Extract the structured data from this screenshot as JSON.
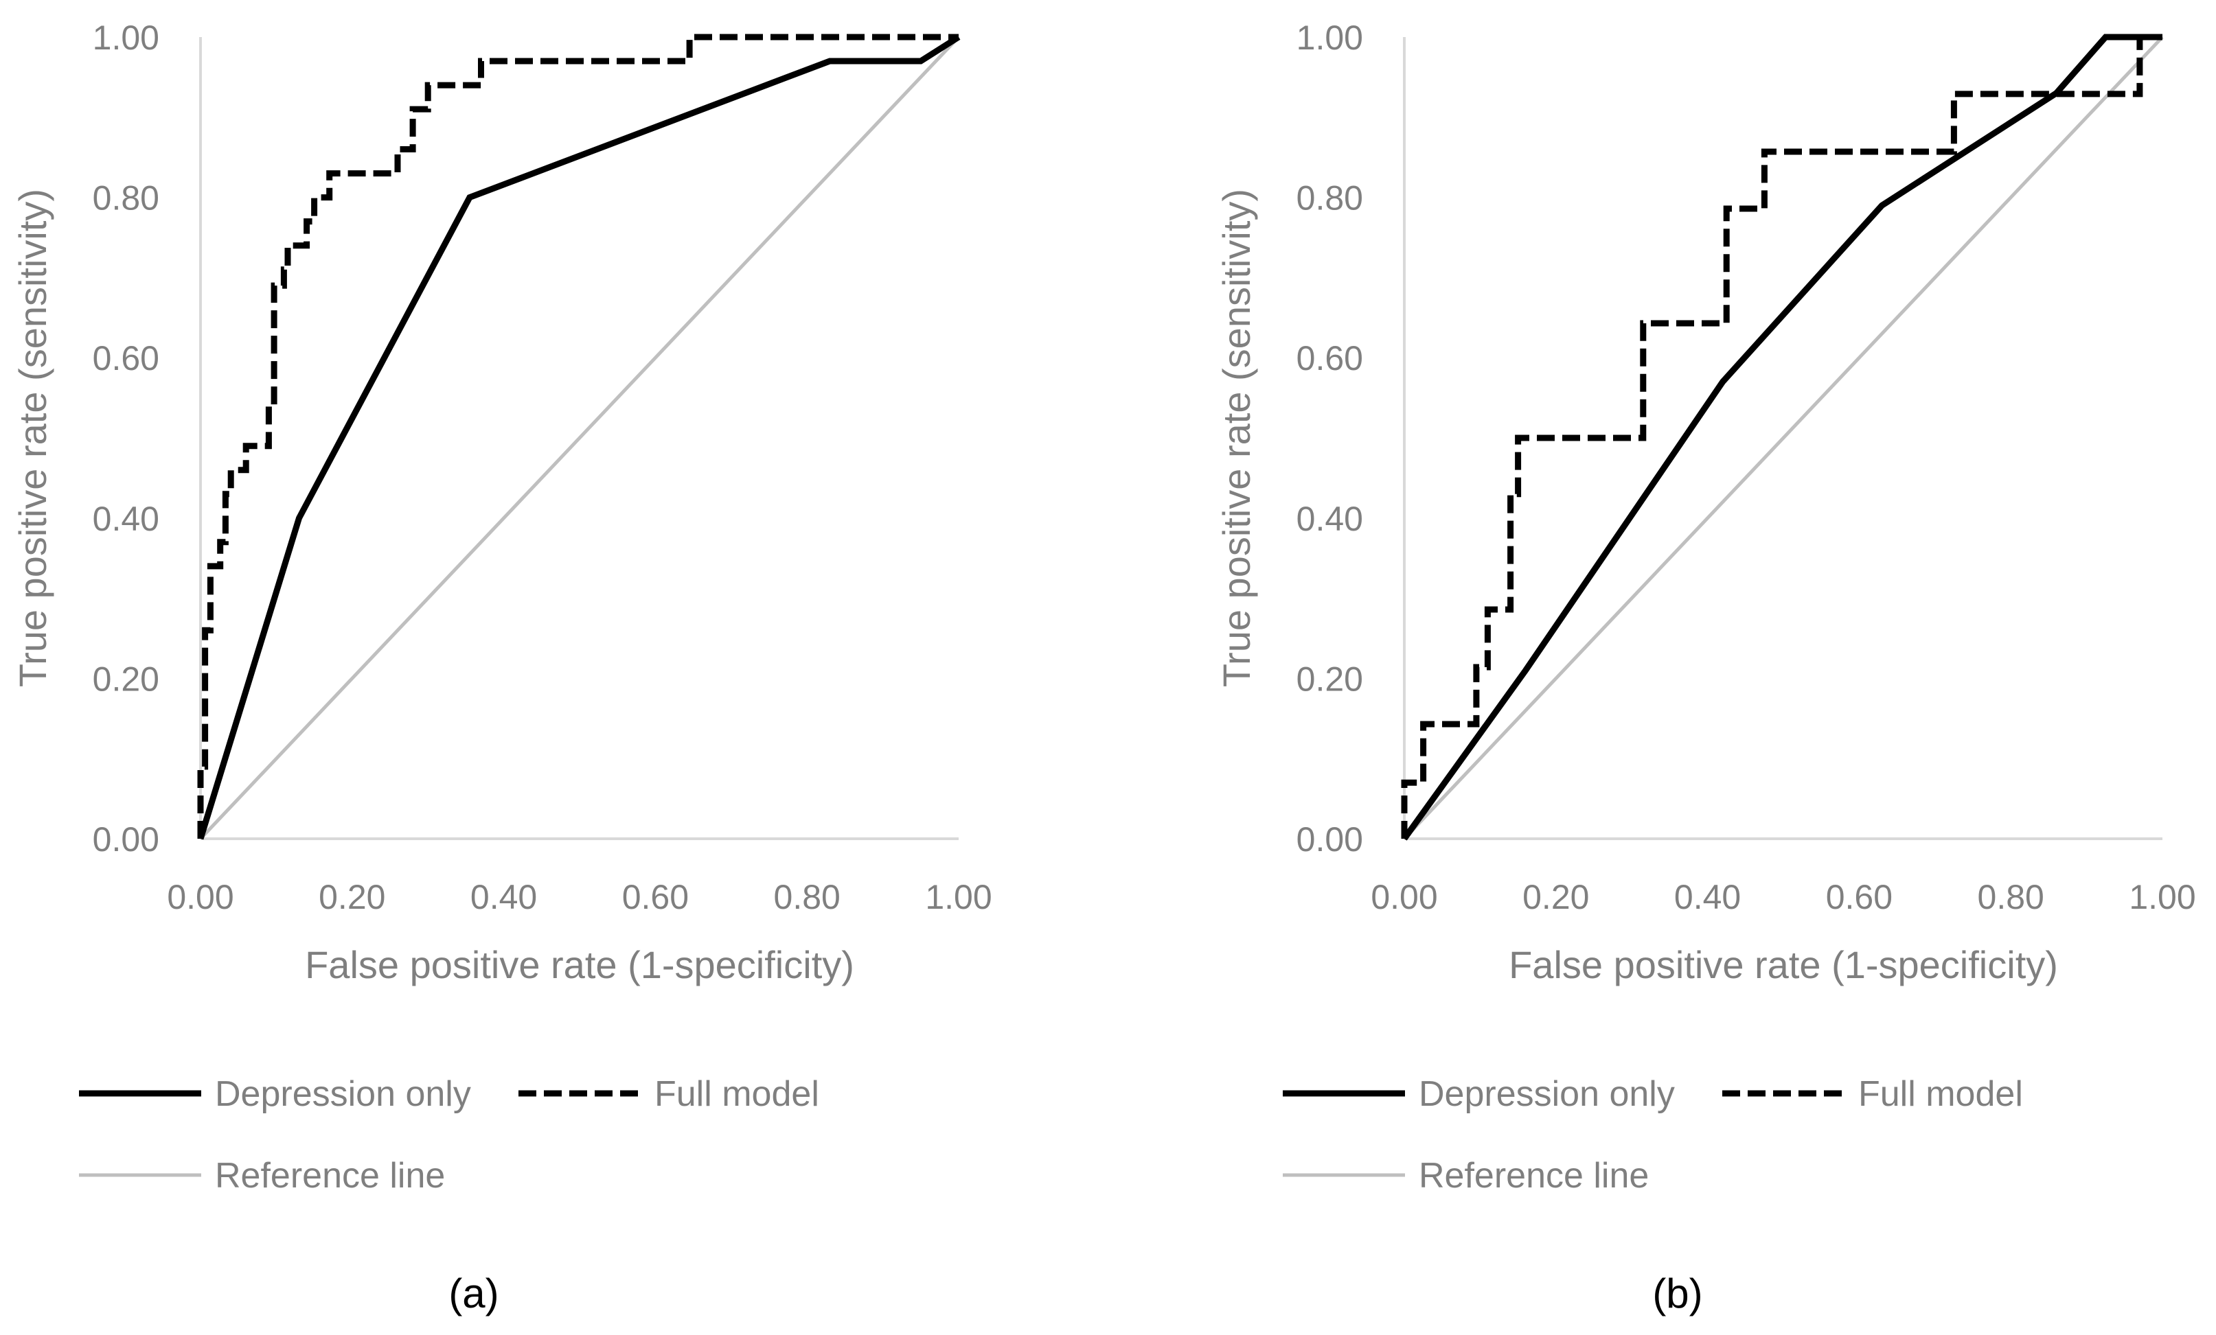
{
  "chart_data": [
    {
      "type": "line",
      "panel_label": "(a)",
      "xlabel": "False positive rate (1-specificity)",
      "ylabel": "True positive rate (sensitivity)",
      "xlim": [
        0,
        1
      ],
      "ylim": [
        0,
        1
      ],
      "x_ticks": [
        "0.00",
        "0.20",
        "0.40",
        "0.60",
        "0.80",
        "1.00"
      ],
      "y_ticks": [
        "0.00",
        "0.20",
        "0.40",
        "0.60",
        "0.80",
        "1.00"
      ],
      "grid": false,
      "legend_position": "bottom",
      "series": [
        {
          "name": "Depression only",
          "style": "solid-thick",
          "color": "#000000",
          "points": [
            [
              0,
              0
            ],
            [
              0.13,
              0.4
            ],
            [
              0.355,
              0.8
            ],
            [
              0.83,
              0.97
            ],
            [
              0.95,
              0.97
            ],
            [
              1.0,
              1.0
            ]
          ]
        },
        {
          "name": "Full model",
          "style": "dashed-thick",
          "color": "#000000",
          "points": [
            [
              0,
              0
            ],
            [
              0,
              0.09
            ],
            [
              0.006,
              0.09
            ],
            [
              0.006,
              0.26
            ],
            [
              0.013,
              0.26
            ],
            [
              0.013,
              0.34
            ],
            [
              0.026,
              0.34
            ],
            [
              0.026,
              0.37
            ],
            [
              0.033,
              0.37
            ],
            [
              0.033,
              0.43
            ],
            [
              0.04,
              0.43
            ],
            [
              0.04,
              0.46
            ],
            [
              0.06,
              0.46
            ],
            [
              0.06,
              0.49
            ],
            [
              0.09,
              0.49
            ],
            [
              0.09,
              0.54
            ],
            [
              0.097,
              0.54
            ],
            [
              0.097,
              0.69
            ],
            [
              0.11,
              0.69
            ],
            [
              0.11,
              0.71
            ],
            [
              0.115,
              0.71
            ],
            [
              0.115,
              0.74
            ],
            [
              0.14,
              0.74
            ],
            [
              0.14,
              0.77
            ],
            [
              0.15,
              0.77
            ],
            [
              0.15,
              0.8
            ],
            [
              0.17,
              0.8
            ],
            [
              0.17,
              0.83
            ],
            [
              0.26,
              0.83
            ],
            [
              0.26,
              0.86
            ],
            [
              0.28,
              0.86
            ],
            [
              0.28,
              0.91
            ],
            [
              0.3,
              0.91
            ],
            [
              0.3,
              0.94
            ],
            [
              0.37,
              0.94
            ],
            [
              0.37,
              0.97
            ],
            [
              0.645,
              0.97
            ],
            [
              0.645,
              1.0
            ],
            [
              1.0,
              1.0
            ]
          ]
        },
        {
          "name": "Reference line",
          "style": "solid-thin",
          "color": "#bfbfbf",
          "points": [
            [
              0,
              0
            ],
            [
              1,
              1
            ]
          ]
        }
      ]
    },
    {
      "type": "line",
      "panel_label": "(b)",
      "xlabel": "False positive rate (1-specificity)",
      "ylabel": "True positive rate (sensitivity)",
      "xlim": [
        0,
        1
      ],
      "ylim": [
        0,
        1
      ],
      "x_ticks": [
        "0.00",
        "0.20",
        "0.40",
        "0.60",
        "0.80",
        "1.00"
      ],
      "y_ticks": [
        "0.00",
        "0.20",
        "0.40",
        "0.60",
        "0.80",
        "1.00"
      ],
      "grid": false,
      "legend_position": "bottom",
      "series": [
        {
          "name": "Depression only",
          "style": "solid-thick",
          "color": "#000000",
          "points": [
            [
              0,
              0
            ],
            [
              0.16,
              0.21
            ],
            [
              0.42,
              0.57
            ],
            [
              0.63,
              0.79
            ],
            [
              0.86,
              0.93
            ],
            [
              0.925,
              1.0
            ],
            [
              1.0,
              1.0
            ]
          ]
        },
        {
          "name": "Full model",
          "style": "dashed-thick",
          "color": "#000000",
          "points": [
            [
              0,
              0
            ],
            [
              0,
              0.07
            ],
            [
              0.025,
              0.07
            ],
            [
              0.025,
              0.143
            ],
            [
              0.095,
              0.143
            ],
            [
              0.095,
              0.214
            ],
            [
              0.11,
              0.214
            ],
            [
              0.11,
              0.286
            ],
            [
              0.14,
              0.286
            ],
            [
              0.14,
              0.43
            ],
            [
              0.15,
              0.43
            ],
            [
              0.15,
              0.5
            ],
            [
              0.315,
              0.5
            ],
            [
              0.315,
              0.643
            ],
            [
              0.425,
              0.643
            ],
            [
              0.425,
              0.786
            ],
            [
              0.475,
              0.786
            ],
            [
              0.475,
              0.857
            ],
            [
              0.725,
              0.857
            ],
            [
              0.725,
              0.929
            ],
            [
              0.97,
              0.929
            ],
            [
              0.97,
              1.0
            ],
            [
              1.0,
              1.0
            ]
          ]
        },
        {
          "name": "Reference line",
          "style": "solid-thin",
          "color": "#bfbfbf",
          "points": [
            [
              0,
              0
            ],
            [
              1,
              1
            ]
          ]
        }
      ]
    }
  ]
}
